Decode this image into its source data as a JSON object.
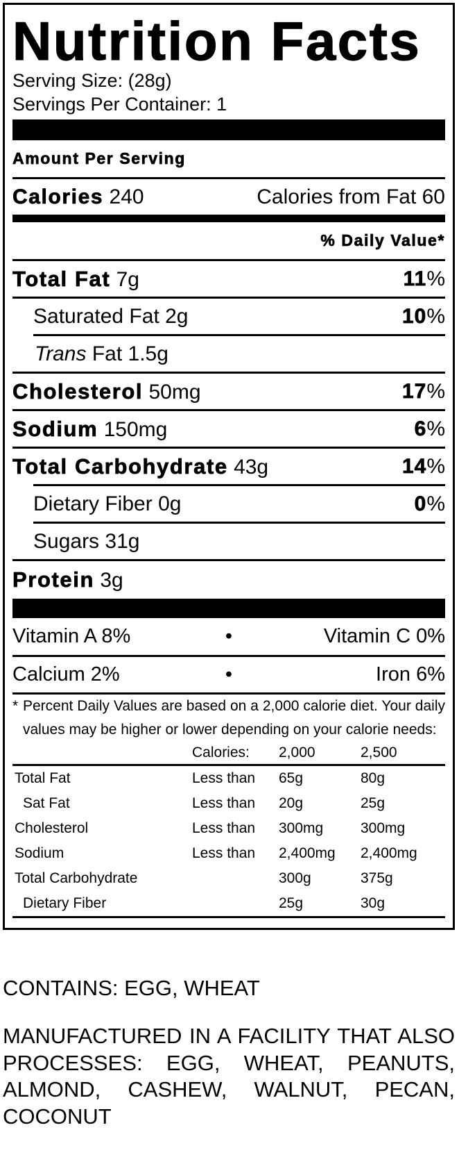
{
  "title": "Nutrition Facts",
  "serving_size": "Serving Size: (28g)",
  "servings_per_container": "Servings Per Container: 1",
  "amount_per_serving": "Amount Per Serving",
  "calories": {
    "label": "Calories",
    "value": "240",
    "from_fat": "Calories from Fat 60"
  },
  "daily_value_header": "% Daily Value*",
  "nutrients": [
    {
      "name": "Total Fat",
      "amount": "7g",
      "dv": "11",
      "pct": "%"
    },
    {
      "name": "Saturated Fat",
      "amount": "2g",
      "dv": "10",
      "pct": "%"
    },
    {
      "name_italic": "Trans",
      "name": "Fat",
      "amount": "1.5g"
    },
    {
      "name": "Cholesterol",
      "amount": "50mg",
      "dv": "17",
      "pct": "%"
    },
    {
      "name": "Sodium",
      "amount": "150mg",
      "dv": "6",
      "pct": "%"
    },
    {
      "name": "Total Carbohydrate",
      "amount": "43g",
      "dv": "14",
      "pct": "%"
    },
    {
      "name": "Dietary Fiber",
      "amount": "0g",
      "dv": "0",
      "pct": "%"
    },
    {
      "name": "Sugars",
      "amount": "31g"
    },
    {
      "name": "Protein",
      "amount": "3g"
    }
  ],
  "vitamins": [
    {
      "left": "Vitamin A 8%",
      "right": "Vitamin C 0%"
    },
    {
      "left": "Calcium 2%",
      "right": "Iron 6%"
    }
  ],
  "bullet": "•",
  "footnote": {
    "asterisk": "*",
    "text": "Percent Daily Values are based on a 2,000 calorie diet. Your daily values may be higher or lower depending on your calorie needs:"
  },
  "dv_table": {
    "header": [
      "",
      "Calories:",
      "2,000",
      "2,500"
    ],
    "rows": [
      [
        "Total Fat",
        "Less than",
        "65g",
        "80g"
      ],
      [
        "Sat Fat",
        "Less than",
        "20g",
        "25g"
      ],
      [
        "Cholesterol",
        "Less than",
        "300mg",
        "300mg"
      ],
      [
        "Sodium",
        "Less than",
        "2,400mg",
        "2,400mg"
      ],
      [
        "Total Carbohydrate",
        "",
        "300g",
        "375g"
      ],
      [
        "Dietary Fiber",
        "",
        "25g",
        "30g"
      ]
    ]
  },
  "contains": "CONTAINS: EGG, WHEAT",
  "facility": "MANUFACTURED IN A FACILITY THAT ALSO PROCESSES: EGG, WHEAT, PEANUTS, ALMOND, CASHEW, WALNUT, PECAN, COCONUT"
}
